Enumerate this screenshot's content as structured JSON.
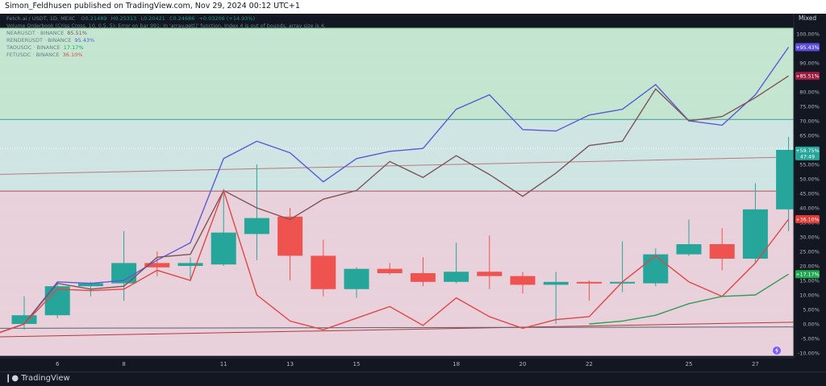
{
  "header": {
    "published_text": "Simon_Feldhusen published on TradingView.com, Nov 29, 2024 00:12 UTC+1"
  },
  "footer": {
    "brand": "TradingView"
  },
  "scale_mode": "Mixed",
  "legend": {
    "main_symbol": "Fetch.ai / USDT, 1D, MEXC",
    "ohlc": {
      "open": "0.21489",
      "high": "0.25313",
      "low": "0.20421",
      "close": "0.24686",
      "change": "+0.03206 (+14.93%)"
    },
    "script_error": "Volume Orderbook (Criss Cross, 10, 0.5, 5): Error on bar 991: In 'array.get()' function. Index 4 is out of bounds, array size is 4.",
    "compare": [
      {
        "symbol": "NEARUSDT · BINANCE",
        "value": "85.51%",
        "color": "#7e5459"
      },
      {
        "symbol": "RENDERUSDT · BINANCE",
        "value": "95.43%",
        "color": "#5b5bd6"
      },
      {
        "symbol": "TAOUSDC · BINANCE",
        "value": "17.17%",
        "color": "#1ca65c"
      },
      {
        "symbol": "FETUSDC · BINANCE",
        "value": "36.10%",
        "color": "#e04747"
      }
    ]
  },
  "price_badges": [
    {
      "text": "+95.43%",
      "value": 95.43,
      "color": "#5b4de0"
    },
    {
      "text": "+85.51%",
      "value": 85.51,
      "color": "#9c1b3f"
    },
    {
      "text": "+59.75%",
      "value": 59.75,
      "sub": "47:49",
      "color": "#26a69a"
    },
    {
      "text": "+36.10%",
      "value": 36.1,
      "color": "#e53935"
    },
    {
      "text": "+17.17%",
      "value": 17.17,
      "color": "#1ea84f"
    }
  ],
  "chart_data": {
    "type": "candlestick",
    "y_scale": "percent",
    "ylim": [
      -12,
      104
    ],
    "y_ticks": [
      100,
      95,
      90,
      85,
      80,
      75,
      70,
      65,
      60,
      55,
      50,
      45,
      40,
      35,
      30,
      25,
      20,
      15,
      10,
      5,
      0,
      -5,
      -10
    ],
    "x_ticks": [
      {
        "label": "6",
        "index": 1
      },
      {
        "label": "8",
        "index": 3
      },
      {
        "label": "11",
        "index": 6
      },
      {
        "label": "13",
        "index": 8
      },
      {
        "label": "15",
        "index": 10
      },
      {
        "label": "18",
        "index": 13
      },
      {
        "label": "20",
        "index": 15
      },
      {
        "label": "22",
        "index": 17
      },
      {
        "label": "25",
        "index": 20
      },
      {
        "label": "27",
        "index": 22
      }
    ],
    "candles": [
      {
        "o": 0,
        "h": 9.5,
        "l": -2,
        "c": 3
      },
      {
        "o": 3,
        "h": 14.5,
        "l": 2,
        "c": 13
      },
      {
        "o": 13,
        "h": 14.5,
        "l": 9.5,
        "c": 14
      },
      {
        "o": 14,
        "h": 32,
        "l": 8,
        "c": 21
      },
      {
        "o": 21,
        "h": 25,
        "l": 16.5,
        "c": 19.5
      },
      {
        "o": 20,
        "h": 23,
        "l": 15,
        "c": 21
      },
      {
        "o": 20.5,
        "h": 46.5,
        "l": 20,
        "c": 31.5
      },
      {
        "o": 31,
        "h": 55,
        "l": 22,
        "c": 36.5
      },
      {
        "o": 37,
        "h": 40,
        "l": 15,
        "c": 23.5
      },
      {
        "o": 23.5,
        "h": 29,
        "l": 9.5,
        "c": 12
      },
      {
        "o": 12,
        "h": 19.5,
        "l": 9,
        "c": 19
      },
      {
        "o": 19,
        "h": 21,
        "l": 17,
        "c": 17.5
      },
      {
        "o": 17.5,
        "h": 23,
        "l": 13,
        "c": 14.5
      },
      {
        "o": 14.5,
        "h": 28,
        "l": 14,
        "c": 18
      },
      {
        "o": 18,
        "h": 30.5,
        "l": 12,
        "c": 16.5
      },
      {
        "o": 16.5,
        "h": 18,
        "l": 10.5,
        "c": 13.5
      },
      {
        "o": 13.5,
        "h": 18,
        "l": 0,
        "c": 14.5
      },
      {
        "o": 14.5,
        "h": 15,
        "l": 8,
        "c": 14
      },
      {
        "o": 14,
        "h": 28.5,
        "l": 11,
        "c": 14.5
      },
      {
        "o": 14,
        "h": 26,
        "l": 13,
        "c": 24
      },
      {
        "o": 24,
        "h": 36,
        "l": 23.5,
        "c": 27.5
      },
      {
        "o": 27.5,
        "h": 33,
        "l": 18.5,
        "c": 22.5
      },
      {
        "o": 22.5,
        "h": 48.5,
        "l": 21,
        "c": 39.5
      },
      {
        "o": 39.5,
        "h": 64.5,
        "l": 32,
        "c": 60
      }
    ],
    "series": [
      {
        "name": "RENDERUSDT · BINANCE",
        "color": "#5b5bd6",
        "values": [
          -4,
          0,
          14.5,
          14,
          15,
          22,
          28,
          57,
          63,
          59,
          49,
          57,
          59.5,
          60.5,
          74,
          79,
          67,
          66.5,
          72,
          74,
          82.5,
          70,
          68.5,
          79,
          95.43
        ]
      },
      {
        "name": "NEARUSDT · BINANCE",
        "color": "#7e5459",
        "values": [
          -4,
          0,
          14,
          12,
          13,
          23,
          24,
          46,
          40,
          36,
          43,
          46,
          56,
          50.5,
          58,
          51.5,
          44,
          52,
          61.5,
          63,
          81,
          70,
          71.5,
          78,
          85.51
        ]
      },
      {
        "name": "FETUSDC · BINANCE",
        "color": "#e04747",
        "values": [
          -4,
          0,
          12,
          11.5,
          12,
          18.5,
          15,
          46,
          10,
          1,
          -2,
          2,
          6,
          -0.5,
          9,
          2.5,
          -1.5,
          1.5,
          2.5,
          14.5,
          23.5,
          14.5,
          9.5,
          21,
          36.1
        ]
      },
      {
        "name": "TAOUSDC · BINANCE",
        "color": "#2e9e57",
        "values": [
          null,
          null,
          null,
          null,
          null,
          null,
          null,
          null,
          null,
          null,
          null,
          null,
          null,
          null,
          null,
          null,
          null,
          null,
          0,
          1,
          3,
          7,
          9.5,
          10,
          17.17
        ]
      }
    ],
    "zones": [
      {
        "from": 70.5,
        "to": 102,
        "color": "#c4e6d0"
      },
      {
        "from": 45.8,
        "to": 70.5,
        "color": "#cfe5e4"
      },
      {
        "from": -11,
        "to": 45.8,
        "color": "#e9d1db"
      }
    ],
    "zone_lines": [
      {
        "value": 102,
        "color": "#5aa27b"
      },
      {
        "value": 70.5,
        "color": "#3f9a8c"
      },
      {
        "value": 45.8,
        "color": "#b0505a"
      }
    ],
    "dotted_line": {
      "value": 60.5,
      "color": "#ffffff"
    },
    "trend_lines": [
      {
        "from": [
          -1,
          51.5
        ],
        "to": [
          25,
          58
        ],
        "color": "#b77a7a"
      },
      {
        "from": [
          -1,
          -4.5
        ],
        "to": [
          25,
          1
        ],
        "color": "#b23b3b"
      },
      {
        "from": [
          -1,
          -1.5
        ],
        "to": [
          25,
          -1
        ],
        "color": "#586070"
      }
    ]
  }
}
